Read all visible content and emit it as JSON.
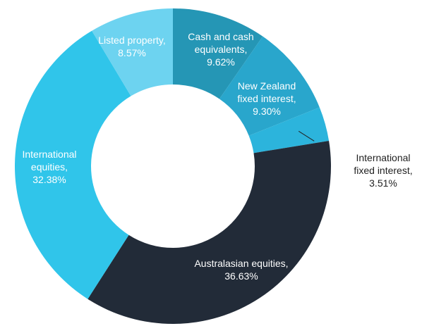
{
  "chart_data": {
    "type": "donut",
    "categories": [
      "Cash and cash equivalents,",
      "New Zealand fixed interest,",
      "International fixed interest,",
      "Australasian equities,",
      "International equities,",
      "Listed property,"
    ],
    "values": [
      9.62,
      9.3,
      3.51,
      36.63,
      32.38,
      8.57
    ],
    "value_labels": [
      "9.62%",
      "9.30%",
      "3.51%",
      "36.63%",
      "32.38%",
      "8.57%"
    ],
    "colors": [
      "#2596b5",
      "#29a6cc",
      "#2cb4dc",
      "#222b38",
      "#30c5ea",
      "#6dd3f0"
    ]
  }
}
